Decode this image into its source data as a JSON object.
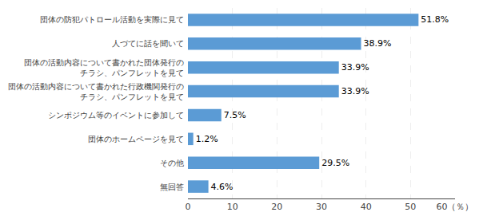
{
  "chart_data": {
    "type": "bar",
    "orientation": "horizontal",
    "categories": [
      "団体の防犯パトロール活動を実際に見て",
      "人づてに話を聞いて",
      "団体の活動内容について書かれた団体発行の\nチラシ、パンフレットを見て",
      "団体の活動内容について書かれた行政機関発行の\nチラシ、パンフレットを見て",
      "シンポジウム等のイベントに参加して",
      "団体のホームページを見て",
      "その他",
      "無回答"
    ],
    "values": [
      51.8,
      38.9,
      33.9,
      33.9,
      7.5,
      1.2,
      29.5,
      4.6
    ],
    "value_labels": [
      "51.8%",
      "38.9%",
      "33.9%",
      "33.9%",
      "7.5%",
      "1.2%",
      "29.5%",
      "4.6%"
    ],
    "data_labels": true,
    "color": "#5b9bd5",
    "xlim": [
      0,
      60
    ],
    "xticks": [
      0,
      10,
      20,
      30,
      40,
      50,
      {
        "value": 60,
        "label": "60（％）"
      }
    ],
    "grid": true
  }
}
